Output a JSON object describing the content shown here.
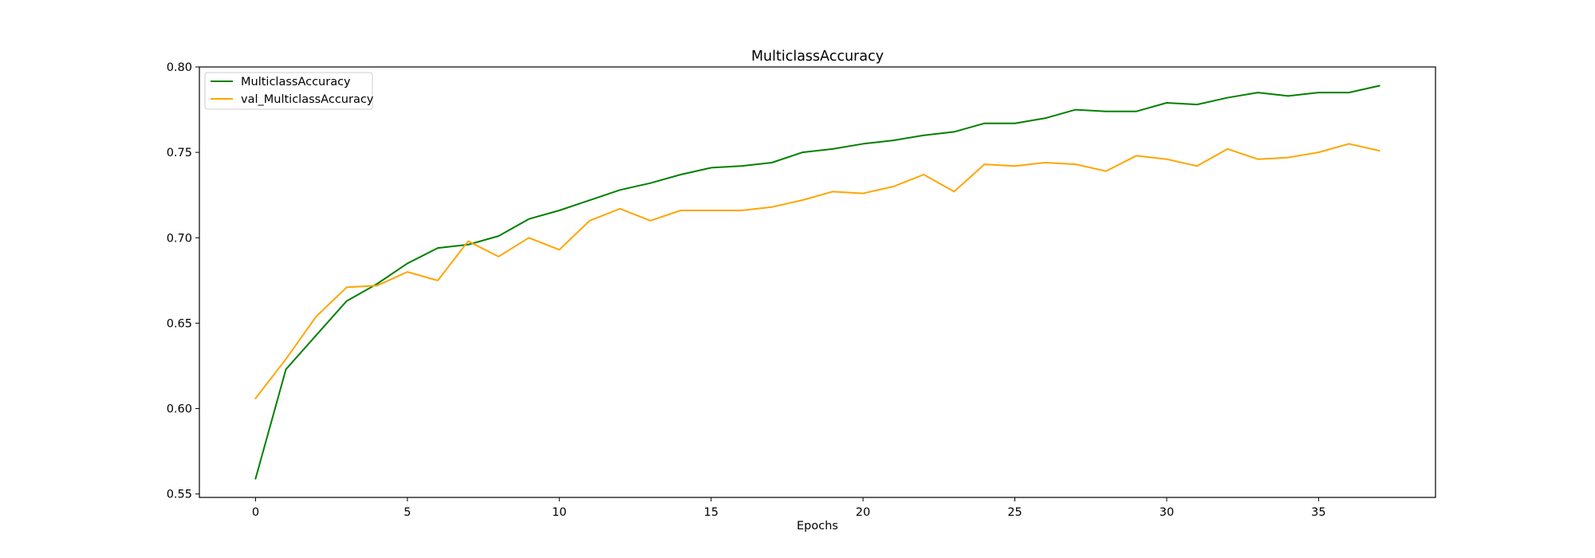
{
  "chart_data": {
    "type": "line",
    "title": "MulticlassAccuracy",
    "xlabel": "Epochs",
    "ylabel": "",
    "xlim": [
      -1.85,
      38.85
    ],
    "ylim": [
      0.548,
      0.8
    ],
    "xticks": [
      0,
      5,
      10,
      15,
      20,
      25,
      30,
      35
    ],
    "xtick_labels": [
      "0",
      "5",
      "10",
      "15",
      "20",
      "25",
      "30",
      "35"
    ],
    "yticks": [
      0.55,
      0.6,
      0.65,
      0.7,
      0.75,
      0.8
    ],
    "ytick_labels": [
      "0.55",
      "0.60",
      "0.65",
      "0.70",
      "0.75",
      "0.80"
    ],
    "grid": false,
    "legend_position": "top-left",
    "x": [
      0,
      1,
      2,
      3,
      4,
      5,
      6,
      7,
      8,
      9,
      10,
      11,
      12,
      13,
      14,
      15,
      16,
      17,
      18,
      19,
      20,
      21,
      22,
      23,
      24,
      25,
      26,
      27,
      28,
      29,
      30,
      31,
      32,
      33,
      34,
      35,
      36,
      37
    ],
    "series": [
      {
        "name": "MulticlassAccuracy",
        "color": "#008000",
        "values": [
          0.559,
          0.623,
          0.643,
          0.663,
          0.673,
          0.685,
          0.694,
          0.696,
          0.701,
          0.711,
          0.716,
          0.722,
          0.728,
          0.732,
          0.737,
          0.741,
          0.742,
          0.744,
          0.75,
          0.752,
          0.755,
          0.757,
          0.76,
          0.762,
          0.767,
          0.767,
          0.77,
          0.775,
          0.774,
          0.774,
          0.779,
          0.778,
          0.782,
          0.785,
          0.783,
          0.785,
          0.785,
          0.789
        ]
      },
      {
        "name": "val_MulticlassAccuracy",
        "color": "#ffa500",
        "values": [
          0.606,
          0.629,
          0.654,
          0.671,
          0.672,
          0.68,
          0.675,
          0.698,
          0.689,
          0.7,
          0.693,
          0.71,
          0.717,
          0.71,
          0.716,
          0.716,
          0.716,
          0.718,
          0.722,
          0.727,
          0.726,
          0.73,
          0.737,
          0.727,
          0.743,
          0.742,
          0.744,
          0.743,
          0.739,
          0.748,
          0.746,
          0.742,
          0.752,
          0.746,
          0.747,
          0.75,
          0.755,
          0.751
        ]
      }
    ]
  }
}
